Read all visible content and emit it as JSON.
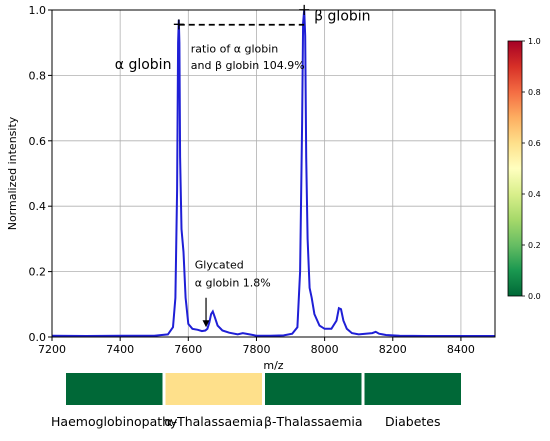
{
  "chart_data": {
    "type": "line",
    "xlabel": "m/z",
    "ylabel": "Normalized intensity",
    "xlim": [
      7200,
      8500
    ],
    "ylim": [
      0,
      1.0
    ],
    "xticks": [
      7200,
      7400,
      7600,
      7800,
      8000,
      8200,
      8400
    ],
    "yticks": [
      0.0,
      0.2,
      0.4,
      0.6,
      0.8,
      1.0
    ],
    "grid": true,
    "line_color": "#1f1fd6",
    "series": [
      {
        "x": [
          7200,
          7300,
          7400,
          7500,
          7540,
          7555,
          7562,
          7567,
          7570,
          7572,
          7574,
          7576,
          7580,
          7586,
          7592,
          7600,
          7612,
          7628,
          7640,
          7650,
          7656,
          7662,
          7667,
          7672,
          7678,
          7686,
          7700,
          7720,
          7745,
          7760,
          7780,
          7800,
          7840,
          7880,
          7905,
          7920,
          7928,
          7934,
          7937,
          7940,
          7943,
          7946,
          7950,
          7956,
          7962,
          7970,
          7985,
          8000,
          8020,
          8035,
          8042,
          8048,
          8055,
          8065,
          8080,
          8100,
          8140,
          8150,
          8160,
          8180,
          8220,
          8300,
          8400,
          8500
        ],
        "y": [
          0.004,
          0.003,
          0.004,
          0.004,
          0.008,
          0.03,
          0.12,
          0.45,
          0.9,
          0.97,
          0.9,
          0.55,
          0.33,
          0.26,
          0.12,
          0.04,
          0.025,
          0.022,
          0.018,
          0.02,
          0.025,
          0.045,
          0.07,
          0.078,
          0.06,
          0.035,
          0.02,
          0.013,
          0.008,
          0.012,
          0.008,
          0.004,
          0.004,
          0.005,
          0.01,
          0.03,
          0.2,
          0.65,
          0.96,
          1.0,
          0.92,
          0.55,
          0.3,
          0.15,
          0.12,
          0.07,
          0.035,
          0.025,
          0.025,
          0.05,
          0.088,
          0.085,
          0.05,
          0.025,
          0.012,
          0.008,
          0.012,
          0.016,
          0.01,
          0.006,
          0.004,
          0.003,
          0.003,
          0.003
        ]
      }
    ],
    "annotations": {
      "alpha_label": "α globin",
      "beta_label": "β globin",
      "ratio_line1": "ratio of α globin",
      "ratio_line2": "and β globin 104.9%",
      "glycated_line1": "Glycated",
      "glycated_line2": "α globin 1.8%",
      "alpha_peak": {
        "x": 7572,
        "y": 0.955
      },
      "beta_peak": {
        "x": 7940,
        "y": 0.955
      },
      "glycated_arrow": {
        "x": 7652,
        "y_from": 0.12,
        "y_to": 0.03
      }
    },
    "colorbar": {
      "colormap": "RdYlGn_r",
      "range": [
        0.0,
        1.0
      ],
      "ticks": [
        0.0,
        0.2,
        0.4,
        0.6,
        0.8,
        1.0
      ],
      "stops": [
        "#006837",
        "#1a9850",
        "#66bd63",
        "#a6d96a",
        "#d9ef8b",
        "#ffffbf",
        "#fee08b",
        "#fdae61",
        "#f46d43",
        "#d73027",
        "#a50026"
      ]
    },
    "risk_bar": {
      "categories": [
        "Haemoglobinopathy",
        "α-Thalassaemia",
        "β-Thalassaemia",
        "Diabetes"
      ],
      "values": [
        0.0,
        0.5,
        0.0,
        0.0
      ],
      "colors": [
        "#006837",
        "#fee08b",
        "#006837",
        "#006837"
      ]
    }
  }
}
